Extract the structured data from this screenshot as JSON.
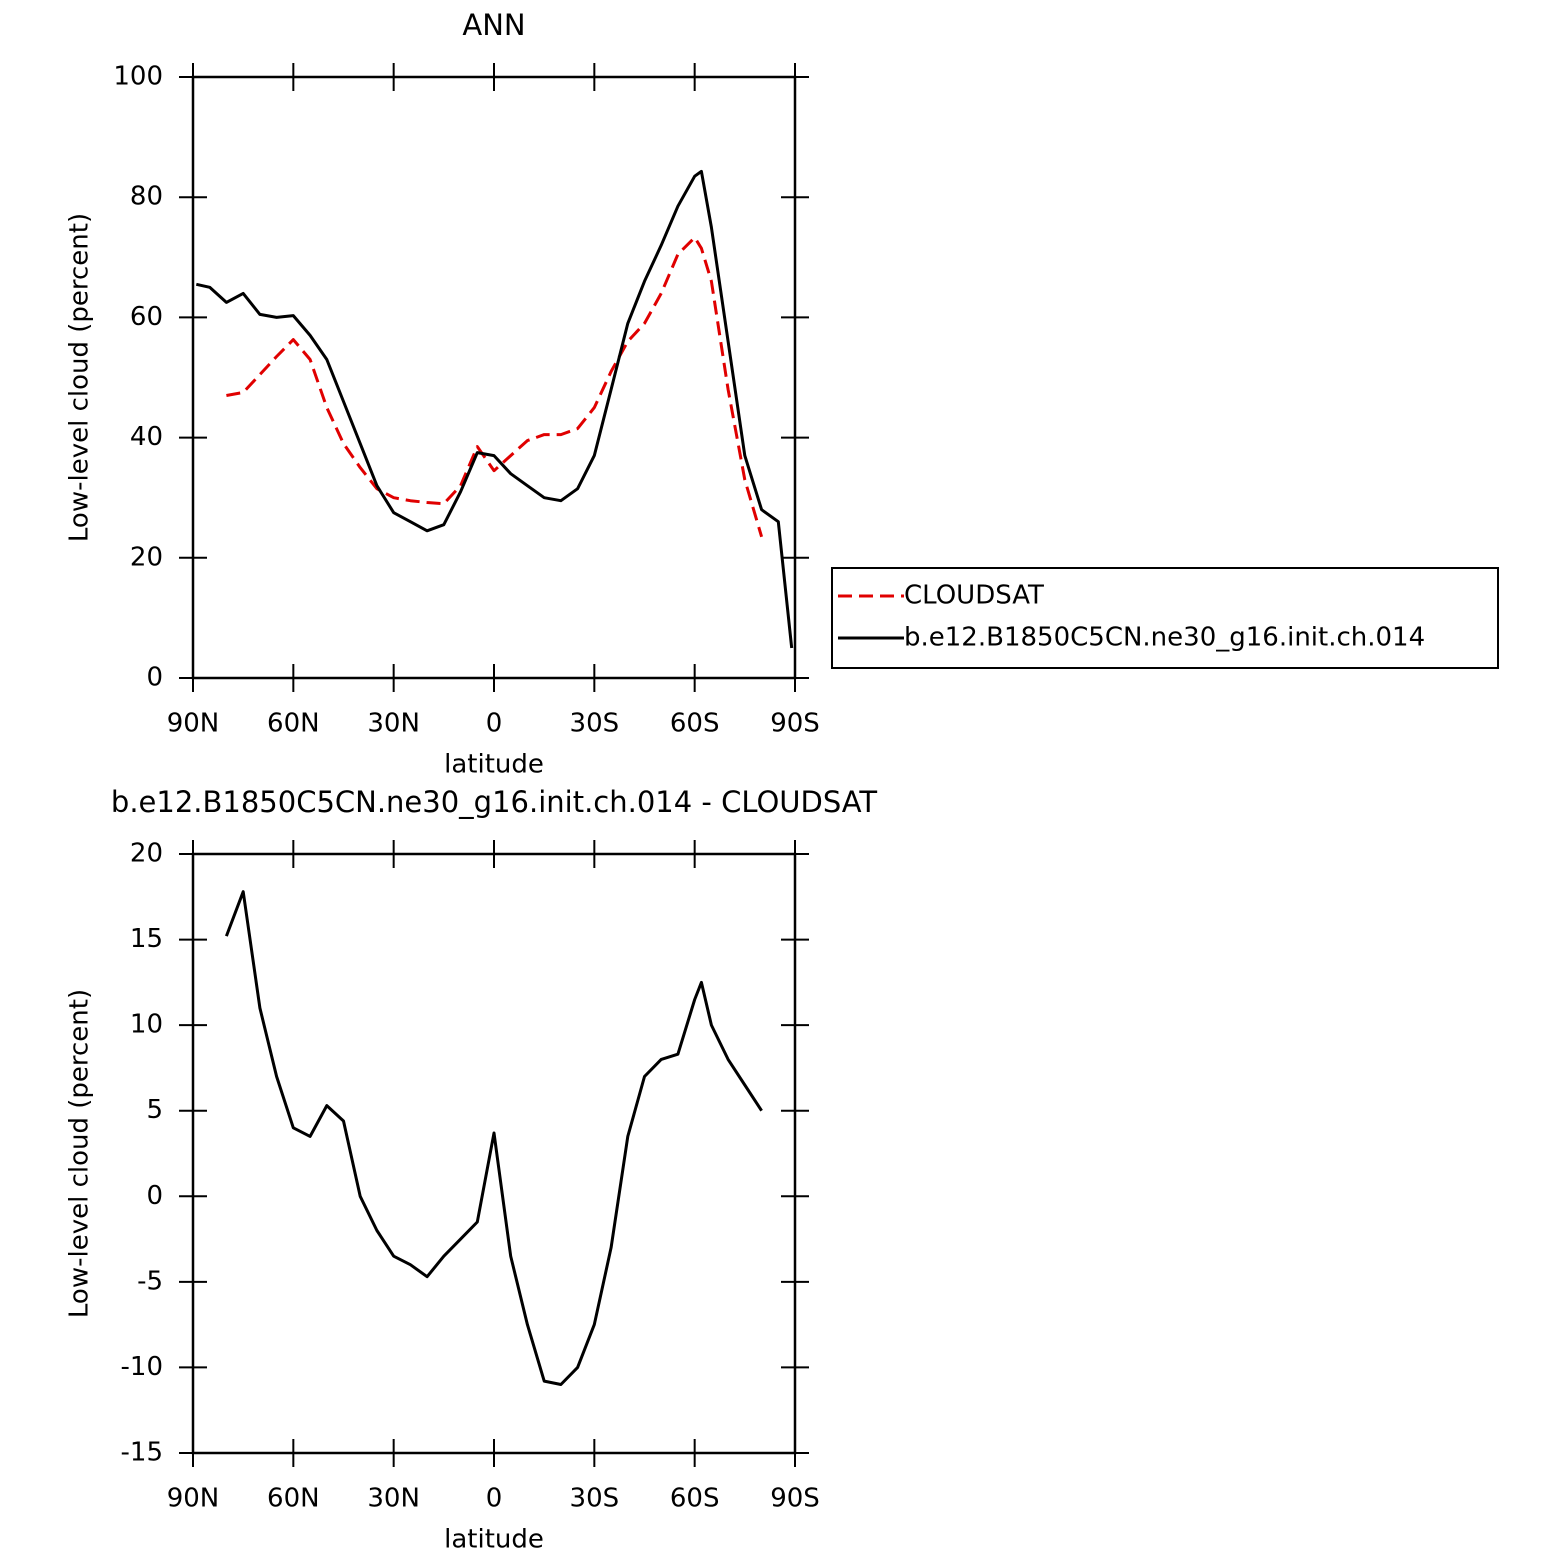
{
  "chart_data": [
    {
      "type": "line",
      "title": "ANN",
      "xlabel": "latitude",
      "ylabel": "Low-level cloud (percent)",
      "x": [
        89,
        85,
        80,
        75,
        70,
        65,
        60,
        55,
        50,
        45,
        40,
        35,
        30,
        25,
        20,
        15,
        10,
        5,
        0,
        -5,
        -10,
        -15,
        -20,
        -25,
        -30,
        -35,
        -40,
        -45,
        -50,
        -55,
        -60,
        -62,
        -65,
        -70,
        -75,
        -80,
        -85,
        -89
      ],
      "xlim": [
        90,
        -90
      ],
      "xticks": [
        {
          "value": 90,
          "label": "90N"
        },
        {
          "value": 60,
          "label": "60N"
        },
        {
          "value": 30,
          "label": "30N"
        },
        0,
        {
          "value": -30,
          "label": "30S"
        },
        {
          "value": -60,
          "label": "60S"
        },
        {
          "value": -90,
          "label": "90S"
        }
      ],
      "ylim": [
        0,
        100
      ],
      "yticks": [
        0,
        20,
        40,
        60,
        80,
        100
      ],
      "legend": "right",
      "series": [
        {
          "name": "CLOUDSAT",
          "color": "#e00000",
          "style": "dashed",
          "values": [
            null,
            null,
            47,
            47.5,
            50.5,
            53.5,
            56.3,
            53,
            45,
            39,
            35,
            31.5,
            30,
            29.5,
            29.2,
            29,
            32,
            38.5,
            34.5,
            37,
            39.5,
            40.5,
            40.5,
            41.5,
            45,
            51,
            56,
            59,
            64,
            70.5,
            73.3,
            71.5,
            66,
            48,
            33,
            23.5,
            null,
            null
          ]
        },
        {
          "name": "b.e12.B1850C5CN.ne30_g16.init.ch.014",
          "color": "#000000",
          "style": "solid",
          "values": [
            65.5,
            65,
            62.5,
            64,
            60.5,
            60,
            60.3,
            57,
            53,
            46,
            39,
            32,
            27.5,
            26,
            24.5,
            25.5,
            31,
            37.5,
            37,
            34,
            32,
            30,
            29.5,
            31.5,
            37,
            48,
            59,
            66,
            72,
            78.5,
            83.5,
            84.3,
            75,
            56,
            37,
            28,
            26,
            5
          ]
        }
      ]
    },
    {
      "type": "line",
      "title": "b.e12.B1850C5CN.ne30_g16.init.ch.014 - CLOUDSAT",
      "xlabel": "latitude",
      "ylabel": "Low-level cloud (percent)",
      "x": [
        89,
        85,
        80,
        75,
        70,
        65,
        60,
        55,
        50,
        45,
        40,
        35,
        30,
        25,
        20,
        15,
        10,
        5,
        0,
        -5,
        -10,
        -15,
        -20,
        -25,
        -30,
        -35,
        -40,
        -45,
        -50,
        -55,
        -60,
        -62,
        -65,
        -70,
        -75,
        -80,
        -85,
        -89
      ],
      "xlim": [
        90,
        -90
      ],
      "xticks": [
        {
          "value": 90,
          "label": "90N"
        },
        {
          "value": 60,
          "label": "60N"
        },
        {
          "value": 30,
          "label": "30N"
        },
        0,
        {
          "value": -30,
          "label": "30S"
        },
        {
          "value": -60,
          "label": "60S"
        },
        {
          "value": -90,
          "label": "90S"
        }
      ],
      "ylim": [
        -15,
        20
      ],
      "yticks": [
        -15,
        -10,
        -5,
        0,
        5,
        10,
        15,
        20
      ],
      "series": [
        {
          "color": "#000000",
          "style": "solid",
          "values": [
            null,
            null,
            15.2,
            17.8,
            11,
            7,
            4,
            3.5,
            5.3,
            4.4,
            0,
            -2,
            -3.5,
            -4,
            -4.7,
            -3.5,
            -2.5,
            -1.5,
            3.7,
            -3.5,
            -7.5,
            -10.8,
            -11,
            -10,
            -7.5,
            -3,
            3.5,
            7,
            8,
            8.3,
            11.5,
            12.5,
            10,
            8,
            6.5,
            5,
            null,
            null
          ]
        }
      ]
    }
  ]
}
